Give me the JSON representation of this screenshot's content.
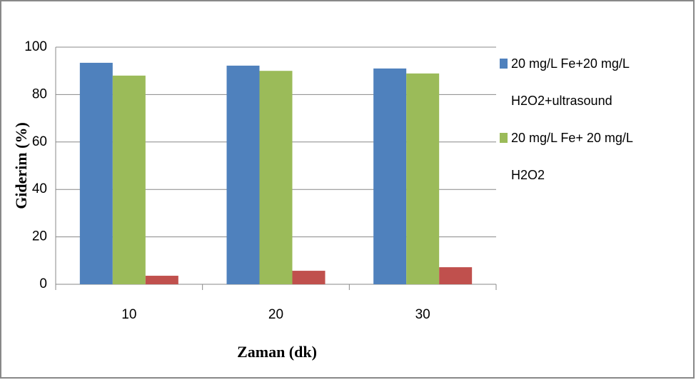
{
  "chart_data": {
    "type": "bar",
    "xlabel": "Zaman (dk)",
    "ylabel": "Giderim (%)",
    "categories": [
      "10",
      "20",
      "30"
    ],
    "series": [
      {
        "name": "20 mg/L Fe+20 mg/L H2O2+ultrasound",
        "color": "#4f81bd",
        "values": [
          93.4,
          92.2,
          91
        ]
      },
      {
        "name": "20 mg/L Fe+ 20 mg/L H2O2",
        "color": "#9bbb59",
        "values": [
          88,
          90,
          88.9
        ]
      },
      {
        "color": "#c0504d",
        "values": [
          3.6,
          5.7,
          7.2
        ]
      }
    ],
    "ylim": [
      0,
      100
    ],
    "yticks": [
      0,
      20,
      40,
      60,
      80,
      100
    ],
    "grid": true,
    "legend": "right"
  }
}
